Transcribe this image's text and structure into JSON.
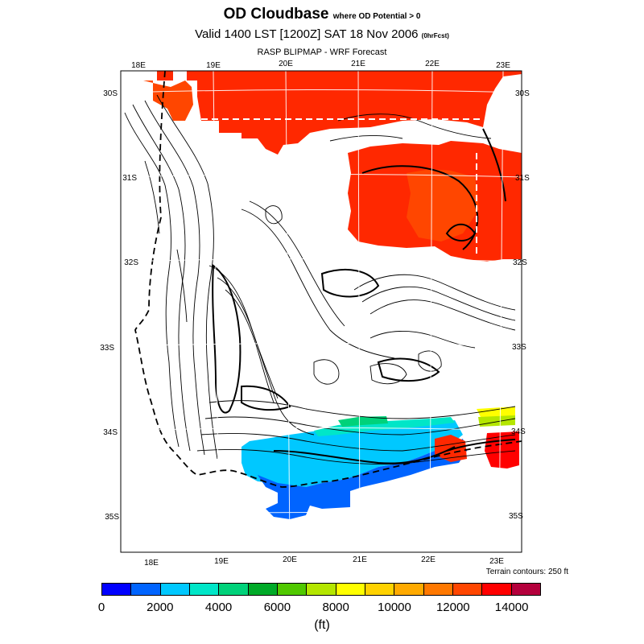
{
  "title": {
    "main": "OD Cloudbase",
    "main_sub": "where OD Potential > 0",
    "valid": "Valid 1400 LST [1200Z] SAT 18 Nov 2006",
    "valid_sub": "(0hrFcst)",
    "model": "RASP BLIPMAP - WRF Forecast"
  },
  "map": {
    "top_lon_labels": [
      "18E",
      "19E",
      "20E",
      "21E",
      "22E",
      "23E"
    ],
    "bottom_lon_labels": [
      "18E",
      "19E",
      "20E",
      "21E",
      "22E",
      "23E"
    ],
    "left_lat_labels": [
      "30S",
      "31S",
      "32S",
      "33S",
      "34S",
      "35S"
    ],
    "right_lat_labels": [
      "30S",
      "31S",
      "32S",
      "33S",
      "34S",
      "35S"
    ],
    "terrain_note": "Terrain contours: 250 ft"
  },
  "colorbar": {
    "colors": [
      "#0000ff",
      "#0064ff",
      "#00c8ff",
      "#00e6c8",
      "#00d27a",
      "#00aa28",
      "#50c800",
      "#b4e600",
      "#ffff00",
      "#ffd200",
      "#ffaa00",
      "#ff7800",
      "#ff4600",
      "#ff0000",
      "#b4003c"
    ],
    "tick_labels": [
      "0",
      "2000",
      "4000",
      "6000",
      "8000",
      "10000",
      "12000",
      "14000"
    ],
    "unit": "(ft)"
  }
}
